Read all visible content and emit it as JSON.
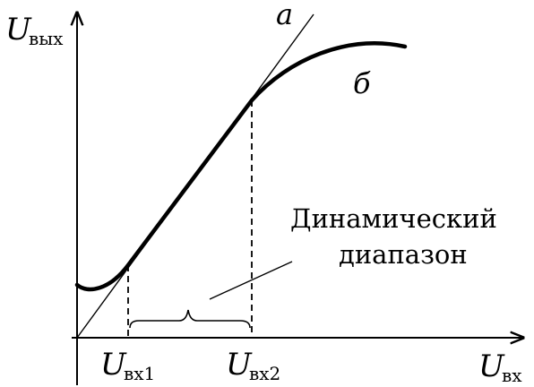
{
  "axes": {
    "y_label": {
      "main": "U",
      "sub": "вых"
    },
    "x_label": {
      "main": "U",
      "sub": "вх"
    }
  },
  "x_ticks": [
    {
      "main": "U",
      "sub": "вх1"
    },
    {
      "main": "U",
      "sub": "вх2"
    }
  ],
  "curve_labels": {
    "ideal": "a",
    "real": "б"
  },
  "annotation": {
    "line1": "Динамический",
    "line2": "диапазон"
  }
}
